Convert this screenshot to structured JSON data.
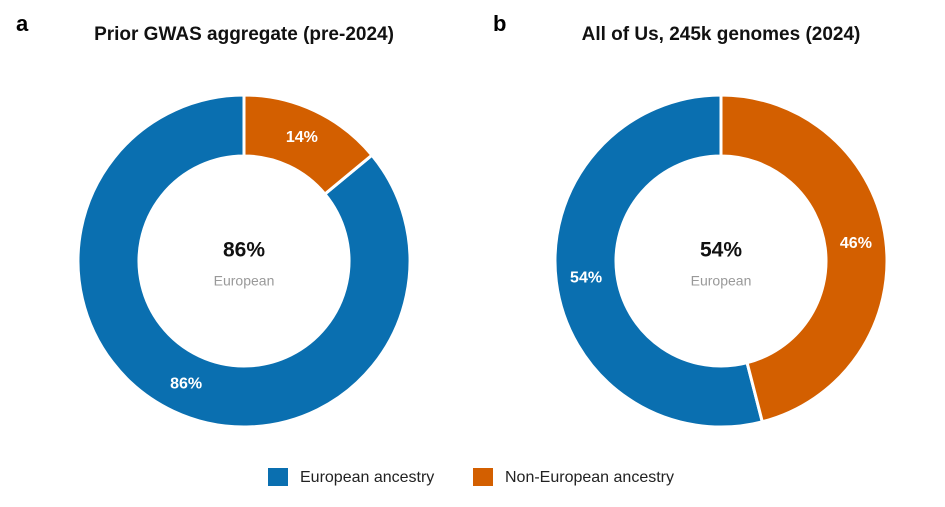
{
  "chart_data": [
    {
      "type": "donut",
      "panel_label": "a",
      "title": "Prior GWAS aggregate (pre-2024)",
      "categories": [
        "European ancestry",
        "Non-European ancestry"
      ],
      "values": [
        86,
        14
      ],
      "value_labels": [
        "86%",
        "14%"
      ],
      "colors": [
        "#0a6fb0",
        "#d35f00"
      ],
      "center_caption": "European"
    },
    {
      "type": "donut",
      "panel_label": "b",
      "title": "All of Us, 245k genomes (2024)",
      "categories": [
        "European ancestry",
        "Non-European ancestry"
      ],
      "values": [
        54,
        46
      ],
      "value_labels": [
        "54%",
        "46%"
      ],
      "colors": [
        "#0a6fb0",
        "#d35f00"
      ],
      "center_caption": "European"
    }
  ]
}
